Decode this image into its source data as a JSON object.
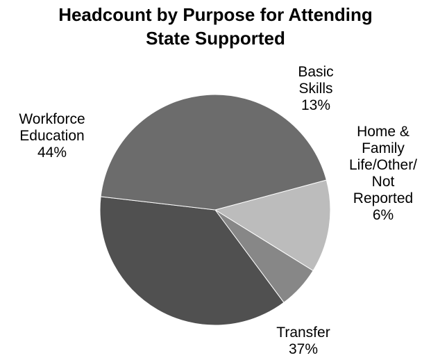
{
  "chart_data": {
    "type": "pie",
    "title": "Headcount by Purpose for Attending State Supported",
    "title_lines": [
      "Headcount by Purpose for Attending",
      "State Supported"
    ],
    "slices": [
      {
        "name": "Basic Skills",
        "label_lines": [
          "Basic",
          "Skills"
        ],
        "value": 13,
        "value_label": "13%",
        "color": "#bcbcbc"
      },
      {
        "name": "Home & Family Life/Other/Not Reported",
        "label_lines": [
          "Home &",
          "Family",
          "Life/Other/",
          "Not",
          "Reported"
        ],
        "value": 6,
        "value_label": "6%",
        "color": "#878787"
      },
      {
        "name": "Transfer",
        "label_lines": [
          "Transfer"
        ],
        "value": 37,
        "value_label": "37%",
        "color": "#505050"
      },
      {
        "name": "Workforce Education",
        "label_lines": [
          "Workforce",
          "Education"
        ],
        "value": 44,
        "value_label": "44%",
        "color": "#6c6c6c"
      }
    ],
    "legend": "none"
  }
}
